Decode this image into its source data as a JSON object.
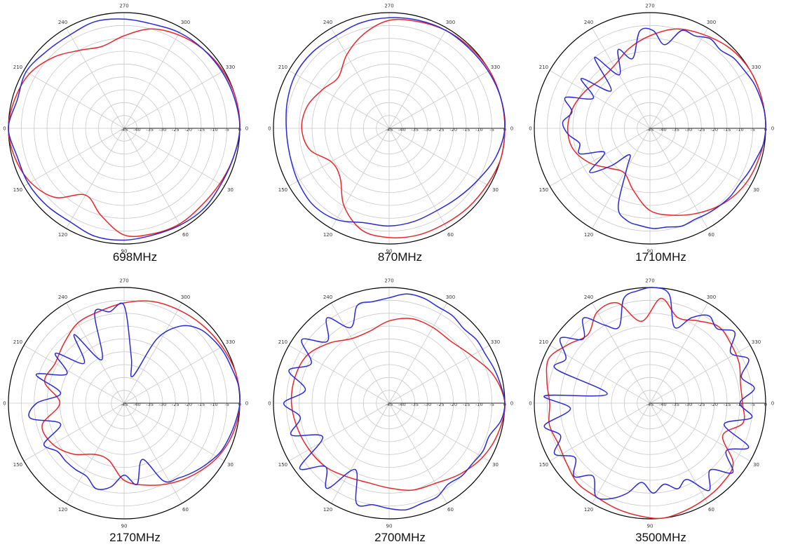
{
  "figure": {
    "colors": {
      "series_red": "#e8262b",
      "series_blue": "#2a2ad4",
      "grid": "#c8c8c8",
      "outer": "#000000"
    }
  },
  "chart_data": [
    {
      "type": "polar",
      "caption": "698MHz",
      "radial_ticks": [
        "-45",
        "-40",
        "-35",
        "-30",
        "-25",
        "-20",
        "-15",
        "-10",
        "-5",
        "0"
      ],
      "angle_ticks": [
        "0",
        "30",
        "60",
        "90",
        "120",
        "150",
        "180",
        "210",
        "240",
        "270",
        "300",
        "330"
      ],
      "rlim": [
        -45,
        0
      ],
      "series": [
        {
          "color": "red",
          "angle_deg": [
            0,
            15,
            30,
            45,
            60,
            75,
            90,
            105,
            120,
            135,
            150,
            165,
            180,
            195,
            210,
            225,
            240,
            255,
            270,
            285,
            300,
            315,
            330,
            345
          ],
          "value_db": [
            0,
            -1,
            -2,
            -2.5,
            -2,
            -2.5,
            -3.5,
            -10,
            -15,
            -7,
            -3,
            -1,
            0,
            -1,
            -2.5,
            -6,
            -10,
            -12,
            -9,
            -5,
            -3,
            -1.5,
            -0.5,
            0
          ]
        },
        {
          "color": "blue",
          "angle_deg": [
            0,
            15,
            30,
            45,
            60,
            75,
            90,
            105,
            120,
            135,
            150,
            165,
            180,
            195,
            210,
            225,
            240,
            255,
            270,
            285,
            300,
            315,
            330,
            345
          ],
          "value_db": [
            0,
            -1,
            -1.5,
            -1,
            -1.5,
            -2,
            -1.5,
            -1.5,
            -3,
            -2.5,
            -2,
            -2,
            0,
            -2,
            -1,
            -2.5,
            -3,
            -2,
            -2.5,
            -3,
            -2,
            -1.5,
            -1,
            -0.5
          ]
        }
      ]
    },
    {
      "type": "polar",
      "caption": "870MHz",
      "radial_ticks": [
        "-45",
        "-40",
        "-35",
        "-30",
        "-25",
        "-20",
        "-15",
        "-10",
        "-5",
        "0"
      ],
      "angle_ticks": [
        "0",
        "30",
        "60",
        "90",
        "120",
        "150",
        "180",
        "210",
        "240",
        "270",
        "300",
        "330"
      ],
      "rlim": [
        -45,
        0
      ],
      "series": [
        {
          "color": "red",
          "angle_deg": [
            0,
            15,
            30,
            45,
            60,
            75,
            90,
            105,
            120,
            135,
            150,
            165,
            180,
            195,
            210,
            225,
            240,
            255,
            270,
            285,
            300,
            315,
            330,
            345
          ],
          "value_db": [
            0,
            0,
            -1,
            -1.5,
            -2,
            -2,
            -2.5,
            -4,
            -10,
            -18,
            -19,
            -13,
            -11,
            -12,
            -15,
            -17,
            -12,
            -7,
            -3,
            -2,
            -1,
            -0.5,
            0,
            0
          ]
        },
        {
          "color": "blue",
          "angle_deg": [
            0,
            15,
            30,
            45,
            60,
            75,
            90,
            105,
            120,
            135,
            150,
            165,
            180,
            195,
            210,
            225,
            240,
            255,
            270,
            285,
            300,
            315,
            330,
            345
          ],
          "value_db": [
            0,
            -2,
            -5,
            -7,
            -8,
            -7.5,
            -7,
            -7,
            -4,
            -3,
            -4,
            -5,
            -5,
            -4,
            -3,
            -3,
            -3.5,
            -2.5,
            -2,
            -1.5,
            -1,
            -1,
            -0.5,
            0
          ]
        }
      ]
    },
    {
      "type": "polar",
      "caption": "1710MHz",
      "radial_ticks": [
        "-45",
        "-40",
        "-35",
        "-30",
        "-25",
        "-20",
        "-15",
        "-10",
        "-5",
        "0"
      ],
      "angle_ticks": [
        "0",
        "30",
        "60",
        "90",
        "120",
        "150",
        "180",
        "210",
        "240",
        "270",
        "300",
        "330"
      ],
      "rlim": [
        -45,
        0
      ],
      "series": [
        {
          "color": "red",
          "angle_deg": [
            0,
            15,
            30,
            45,
            60,
            75,
            90,
            105,
            120,
            135,
            150,
            165,
            180,
            195,
            210,
            225,
            240,
            255,
            270,
            285,
            300,
            315,
            330,
            345
          ],
          "value_db": [
            0,
            -1,
            -2,
            -4,
            -7,
            -10,
            -13,
            -20,
            -25,
            -23,
            -18,
            -14,
            -13,
            -14,
            -16,
            -18,
            -17,
            -13,
            -9,
            -5,
            -3,
            -1,
            0,
            0
          ]
        },
        {
          "color": "blue",
          "angle_deg": [
            0,
            8,
            16,
            24,
            32,
            40,
            48,
            56,
            64,
            72,
            80,
            88,
            96,
            104,
            112,
            120,
            128,
            136,
            144,
            152,
            160,
            168,
            176,
            184,
            192,
            200,
            208,
            216,
            224,
            232,
            240,
            248,
            256,
            264,
            272,
            280,
            288,
            296,
            304,
            312,
            320,
            328,
            336,
            344,
            352
          ],
          "value_db": [
            0,
            -0.5,
            -2,
            -3,
            -4,
            -4,
            -4.5,
            -5,
            -5.5,
            -5,
            -6,
            -6,
            -7,
            -8,
            -12,
            -27,
            -32,
            -24,
            -16,
            -25,
            -16,
            -17,
            -13,
            -11,
            -14,
            -10,
            -20,
            -12,
            -24,
            -10,
            -21,
            -12,
            -17,
            -7,
            -7,
            -12,
            -5,
            -5,
            -3,
            -4,
            -2.5,
            -2,
            -1,
            -0.5,
            0
          ]
        }
      ]
    },
    {
      "type": "polar",
      "caption": "2170MHz",
      "radial_ticks": [
        "-45",
        "-40",
        "-35",
        "-30",
        "-25",
        "-20",
        "-15",
        "-10",
        "-5",
        "0"
      ],
      "angle_ticks": [
        "0",
        "30",
        "60",
        "90",
        "120",
        "150",
        "180",
        "210",
        "240",
        "270",
        "300",
        "330"
      ],
      "rlim": [
        -45,
        0
      ],
      "series": [
        {
          "color": "red",
          "angle_deg": [
            0,
            15,
            30,
            45,
            60,
            75,
            90,
            105,
            120,
            135,
            150,
            165,
            180,
            195,
            210,
            225,
            240,
            255,
            270,
            285,
            300,
            315,
            330,
            345
          ],
          "value_db": [
            0,
            -1,
            -3,
            -6,
            -9,
            -12,
            -15,
            -22,
            -22,
            -17,
            -13,
            -12,
            -20,
            -13,
            -14,
            -12,
            -9,
            -8,
            -6,
            -4,
            -3,
            -2,
            -1,
            0
          ]
        },
        {
          "color": "blue",
          "angle_deg": [
            0,
            9,
            18,
            27,
            36,
            45,
            54,
            63,
            72,
            81,
            90,
            99,
            108,
            117,
            126,
            135,
            144,
            153,
            162,
            171,
            180,
            189,
            198,
            207,
            216,
            225,
            234,
            243,
            252,
            261,
            270,
            279,
            288,
            297,
            306,
            315,
            324,
            333,
            342,
            351
          ],
          "value_db": [
            0,
            -1,
            -2,
            -3,
            -5,
            -7,
            -9,
            -11,
            -22,
            -13,
            -17,
            -12,
            -10,
            -13,
            -13,
            -13,
            -13,
            -10,
            -19,
            -8,
            -11,
            -20,
            -9,
            -20,
            -12,
            -23,
            -12,
            -26,
            -8,
            -9,
            -7,
            -27,
            -34,
            -17,
            -8,
            -4,
            -2.5,
            -1.5,
            -1,
            0
          ]
        }
      ]
    },
    {
      "type": "polar",
      "caption": "2700MHz",
      "radial_ticks": [
        "-45",
        "-40",
        "-35",
        "-30",
        "-25",
        "-20",
        "-15",
        "-10",
        "-5",
        "0"
      ],
      "angle_ticks": [
        "0",
        "30",
        "60",
        "90",
        "120",
        "150",
        "180",
        "210",
        "240",
        "270",
        "300",
        "330"
      ],
      "rlim": [
        -45,
        0
      ],
      "series": [
        {
          "color": "red",
          "angle_deg": [
            0,
            15,
            30,
            45,
            60,
            75,
            90,
            105,
            120,
            135,
            150,
            165,
            180,
            195,
            210,
            225,
            240,
            255,
            270,
            285,
            300,
            315,
            330,
            345
          ],
          "value_db": [
            0,
            -1,
            -3,
            -6,
            -9,
            -10,
            -12,
            -13,
            -12,
            -10,
            -9,
            -8,
            -7,
            -7,
            -8,
            -12,
            -16,
            -16,
            -13,
            -11,
            -11,
            -11,
            -8,
            -3
          ]
        },
        {
          "color": "blue",
          "angle_deg": [
            0,
            9,
            18,
            27,
            36,
            45,
            54,
            63,
            72,
            81,
            90,
            99,
            108,
            117,
            126,
            135,
            144,
            153,
            162,
            171,
            180,
            189,
            198,
            207,
            216,
            225,
            234,
            243,
            252,
            261,
            270,
            279,
            288,
            297,
            306,
            315,
            324,
            333,
            342,
            351
          ],
          "value_db": [
            0,
            -1,
            -4,
            -4,
            -5,
            -5,
            -6,
            -4,
            -4,
            -3,
            -4,
            -5,
            -4,
            -16,
            -4,
            -10,
            -2,
            -16,
            -5,
            -10,
            -4,
            -12,
            -4,
            -11,
            -3,
            -11,
            -4,
            -12,
            -5,
            -5,
            -4,
            -2,
            -2,
            -3,
            -3,
            -4,
            -3,
            -3,
            -2,
            -1
          ]
        }
      ]
    },
    {
      "type": "polar",
      "caption": "3500MHz",
      "radial_ticks": [
        "-45",
        "-40",
        "-35",
        "-30",
        "-25",
        "-20",
        "-15",
        "-10",
        "-5",
        "0"
      ],
      "angle_ticks": [
        "0",
        "30",
        "60",
        "90",
        "120",
        "150",
        "180",
        "210",
        "240",
        "270",
        "300",
        "330"
      ],
      "rlim": [
        -45,
        0
      ],
      "series": [
        {
          "color": "red",
          "angle_deg": [
            0,
            12,
            24,
            36,
            48,
            60,
            72,
            84,
            96,
            108,
            120,
            132,
            144,
            156,
            168,
            180,
            192,
            204,
            216,
            228,
            240,
            252,
            264,
            276,
            288,
            300,
            312,
            324,
            336,
            348
          ],
          "value_db": [
            -9,
            -8,
            -14,
            -5,
            -3,
            -2,
            -1,
            0,
            -1,
            -2,
            -3,
            -3,
            -5,
            -6,
            -5,
            -6,
            -4,
            -2,
            -6,
            -9,
            -4,
            -4,
            -13,
            -4,
            -10,
            -8,
            -5,
            -6,
            -7,
            -9
          ]
        },
        {
          "color": "blue",
          "angle_deg": [
            0,
            8,
            16,
            24,
            32,
            40,
            48,
            56,
            64,
            72,
            80,
            88,
            96,
            104,
            112,
            120,
            128,
            136,
            144,
            152,
            160,
            168,
            176,
            184,
            192,
            200,
            208,
            216,
            224,
            232,
            240,
            248,
            256,
            264,
            272,
            280,
            288,
            296,
            304,
            312,
            320,
            328,
            336,
            344,
            352
          ],
          "value_db": [
            -10,
            -5,
            -15,
            -3,
            -10,
            -3,
            -10,
            -4,
            -12,
            -10,
            -13,
            -10,
            -14,
            -9,
            -5,
            -3,
            -9,
            -4,
            -9,
            -3,
            -8,
            -3,
            -14,
            -4,
            -28,
            -6,
            -8,
            -2,
            -9,
            -3,
            -10,
            -13,
            -3,
            -1,
            0,
            -2,
            -14,
            -8,
            -4,
            -6,
            -2,
            -8,
            -3,
            -8,
            -4
          ]
        }
      ]
    }
  ]
}
